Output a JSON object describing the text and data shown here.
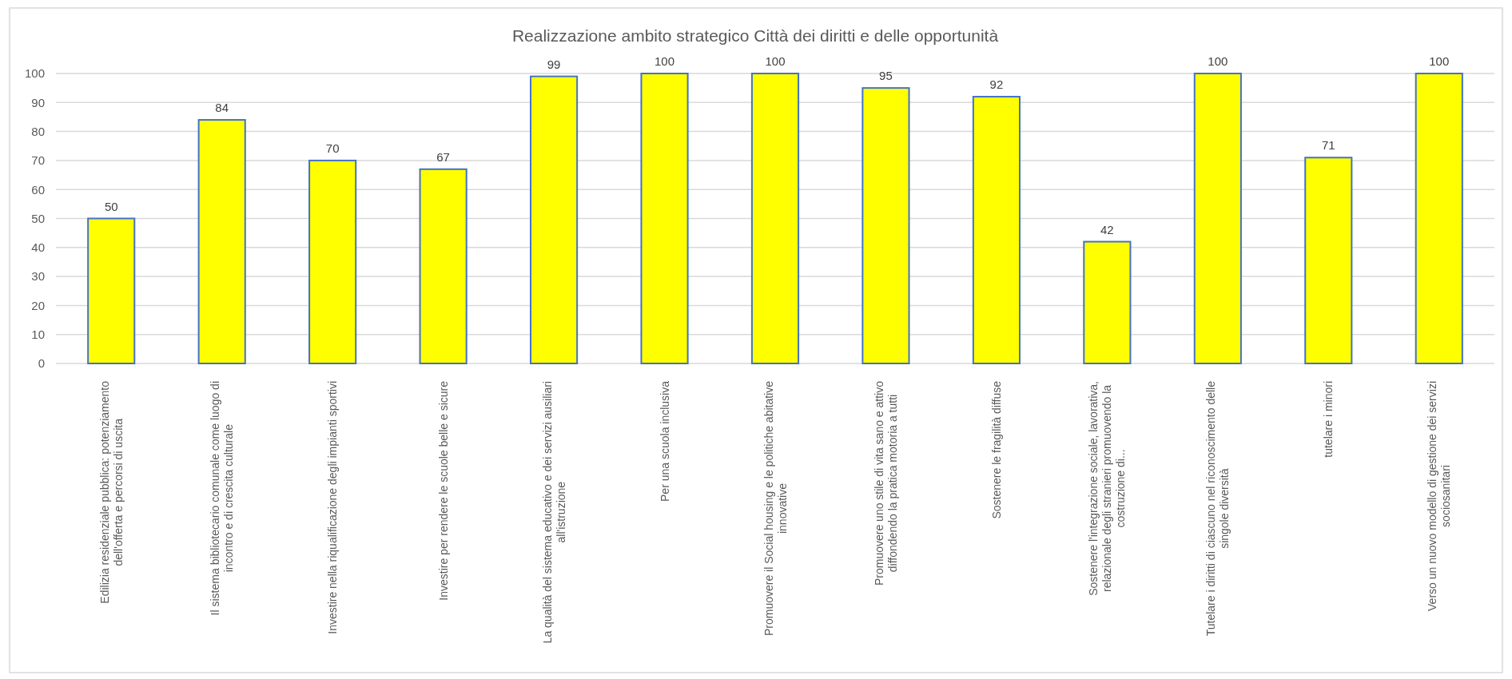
{
  "chart_data": {
    "type": "bar",
    "title": "Realizzazione ambito strategico Città dei diritti e delle opportunità",
    "categories": [
      "Edilizia residenziale pubblica: potenziamento dell'offerta e percorsi di uscita",
      "Il sistema bibliotecario comunale come luogo di incontro e di crescita culturale",
      "Investire nella riqualificazione degli impianti sportivi",
      "Investire per rendere le scuole belle e sicure",
      "La qualità del sistema educativo e dei servizi ausiliari all'istruzione",
      "Per una scuola inclusiva",
      "Promuovere il Social housing e le politiche abitative innovative",
      "Promuovere uno stile di vita sano e attivo diffondendo la pratica motoria a tutti",
      "Sostenere le fragilità diffuse",
      "Sostenere l'integrazione sociale, lavorativa, relazionale degli stranieri promuovendo la costruzione di...",
      "Tutelare i diritti di ciascuno nel riconoscimento delle singole diversità",
      "tutelare i minori",
      "Verso un nuovo modello di gestione dei servizi sociosanitari"
    ],
    "values": [
      50,
      84,
      70,
      67,
      99,
      100,
      100,
      95,
      92,
      42,
      100,
      71,
      100
    ],
    "color": "#ffff00",
    "ylim": [
      0,
      100
    ],
    "yticks": [
      0,
      10,
      20,
      30,
      40,
      50,
      60,
      70,
      80,
      90,
      100
    ],
    "grid": "y",
    "data_labels": true
  }
}
